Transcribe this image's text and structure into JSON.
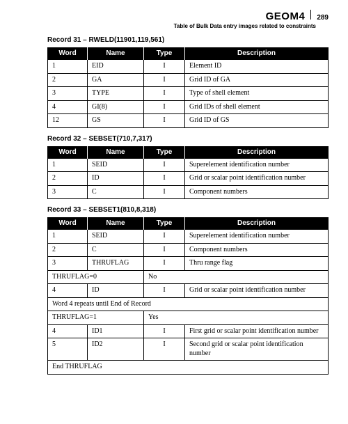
{
  "header": {
    "title": "GEOM4",
    "page_number": "289",
    "subtitle": "Table of Bulk Data entry images related to constraints"
  },
  "records": [
    {
      "title": "Record 31 – RWELD(11901,119,561)",
      "columns": [
        "Word",
        "Name",
        "Type",
        "Description"
      ],
      "rows": [
        {
          "cells": [
            "1",
            "EID",
            "I",
            "Element ID"
          ]
        },
        {
          "cells": [
            "2",
            "GA",
            "I",
            "Grid ID of GA"
          ]
        },
        {
          "cells": [
            "3",
            "TYPE",
            "I",
            "Type of shell element"
          ]
        },
        {
          "cells": [
            "4",
            "GI(8)",
            "I",
            "Grid IDs of shell element"
          ]
        },
        {
          "cells": [
            "12",
            "GS",
            "I",
            "Grid ID of GS"
          ]
        }
      ]
    },
    {
      "title": "Record 32 – SEBSET(710,7,317)",
      "columns": [
        "Word",
        "Name",
        "Type",
        "Description"
      ],
      "rows": [
        {
          "cells": [
            "1",
            "SEID",
            "I",
            "Superelement identification number"
          ]
        },
        {
          "cells": [
            "2",
            "ID",
            "I",
            "Grid or scalar point identification number"
          ]
        },
        {
          "cells": [
            "3",
            "C",
            "I",
            "Component numbers"
          ]
        }
      ]
    },
    {
      "title": "Record 33 – SEBSET1(810,8,318)",
      "columns": [
        "Word",
        "Name",
        "Type",
        "Description"
      ],
      "rows": [
        {
          "cells": [
            "1",
            "SEID",
            "I",
            "Superelement identification number"
          ]
        },
        {
          "cells": [
            "2",
            "C",
            "I",
            "Component numbers"
          ]
        },
        {
          "cells": [
            "3",
            "THRUFLAG",
            "I",
            "Thru range flag"
          ]
        },
        {
          "kind": "two",
          "left": "THRUFLAG=0",
          "right": "No"
        },
        {
          "cells": [
            "4",
            "ID",
            "I",
            "Grid or scalar point identification number"
          ]
        },
        {
          "kind": "full",
          "text": "Word 4 repeats until End of Record"
        },
        {
          "kind": "two",
          "left": "THRUFLAG=1",
          "right": "Yes"
        },
        {
          "cells": [
            "4",
            "ID1",
            "I",
            "First grid or scalar point identification number"
          ]
        },
        {
          "cells": [
            "5",
            "ID2",
            "I",
            "Second grid or scalar point identification number"
          ]
        },
        {
          "kind": "full",
          "text": "End THRUFLAG"
        }
      ]
    }
  ]
}
